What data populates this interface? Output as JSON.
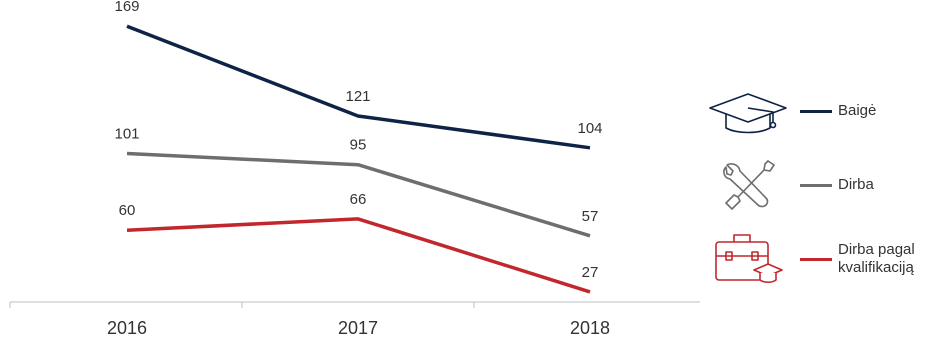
{
  "chart_data": {
    "type": "line",
    "x": [
      "2016",
      "2017",
      "2018"
    ],
    "series": [
      {
        "name": "Baigė",
        "values": [
          169,
          121,
          104
        ],
        "color": "#0e2346",
        "icon": "graduation-cap-icon"
      },
      {
        "name": "Dirba",
        "values": [
          101,
          95,
          57
        ],
        "color": "#6e6e6e",
        "icon": "wrench-screwdriver-icon"
      },
      {
        "name": "Dirba pagal kvalifikaciją",
        "display_name": "Dirba pagal\nkvalifikaciją",
        "values": [
          60,
          66,
          27
        ],
        "color": "#c1272d",
        "icon": "briefcase-graduation-icon"
      }
    ],
    "title": "",
    "xlabel": "",
    "ylabel": "",
    "ylim": [
      20,
      175
    ],
    "grid": false,
    "legend": "right"
  }
}
